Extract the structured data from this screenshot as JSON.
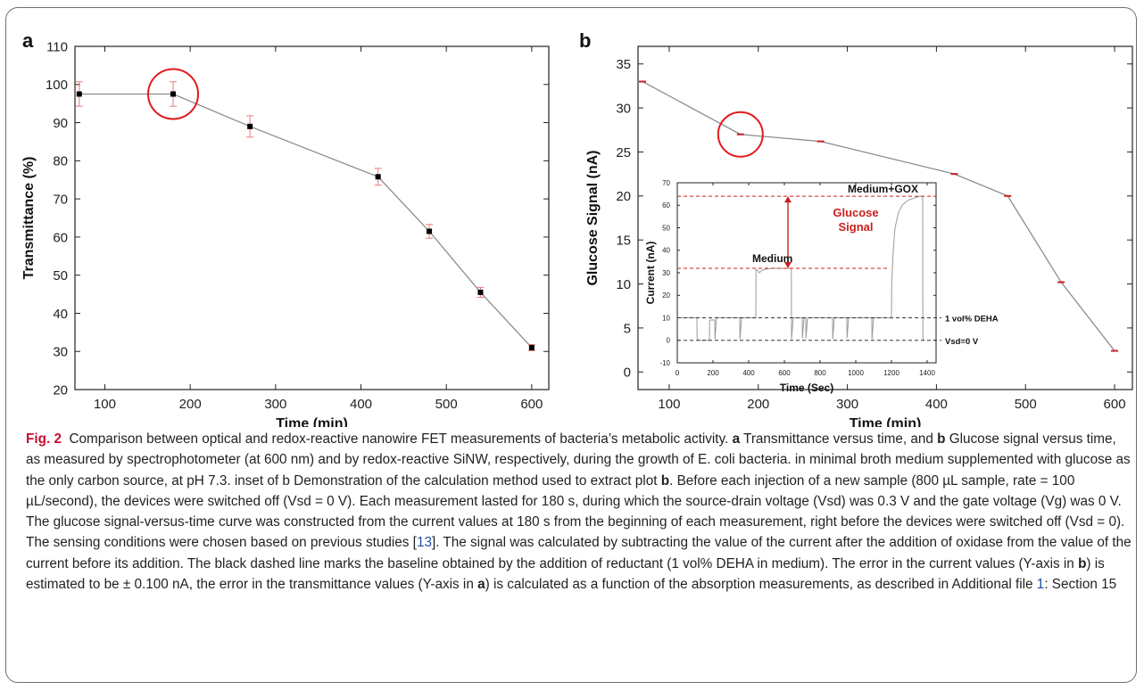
{
  "chart_data": [
    {
      "panel": "a",
      "type": "line",
      "xlabel": "Time (min)",
      "ylabel": "Transmittance (%)",
      "xlim": [
        65,
        620
      ],
      "ylim": [
        20,
        110
      ],
      "xticks": [
        100,
        200,
        300,
        400,
        500,
        600
      ],
      "yticks": [
        20,
        30,
        40,
        50,
        60,
        70,
        80,
        90,
        100,
        110
      ],
      "series": [
        {
          "x": [
            70,
            180,
            270,
            420,
            480,
            540,
            600
          ],
          "y": [
            97.5,
            97.5,
            89,
            75.8,
            61.5,
            45.5,
            31
          ],
          "err": [
            3.2,
            3.2,
            2.8,
            2.2,
            1.8,
            1.3,
            0.8
          ]
        }
      ],
      "highlight": {
        "x": 180,
        "y": 97.5
      },
      "colors": {
        "line": "#8c8c8c",
        "marker": "#000000",
        "error": "#e87a7a",
        "highlight": "#e31a1c"
      }
    },
    {
      "panel": "b",
      "type": "line",
      "xlabel": "Time (min)",
      "ylabel": "Glucose Signal (nA)",
      "xlim": [
        65,
        620
      ],
      "ylim": [
        -2,
        37
      ],
      "xticks": [
        100,
        200,
        300,
        400,
        500,
        600
      ],
      "yticks": [
        0,
        5,
        10,
        15,
        20,
        25,
        30,
        35
      ],
      "series": [
        {
          "x": [
            70,
            180,
            270,
            420,
            480,
            540,
            600
          ],
          "y": [
            33,
            27,
            26.2,
            22.5,
            20,
            10.2,
            2.4
          ],
          "err": [
            0.1,
            0.1,
            0.1,
            0.1,
            0.1,
            0.1,
            0.1
          ]
        }
      ],
      "highlight": {
        "x": 180,
        "y": 27
      },
      "colors": {
        "line": "#8c8c8c",
        "marker": "#cc2020",
        "highlight": "#e31a1c"
      }
    },
    {
      "panel": "b-inset",
      "type": "line",
      "xlabel": "Time (Sec)",
      "ylabel": "Current (nA)",
      "xlim": [
        0,
        1450
      ],
      "ylim": [
        -10,
        70
      ],
      "xticks": [
        0,
        200,
        400,
        600,
        800,
        1000,
        1200,
        1400
      ],
      "yticks": [
        -10,
        0,
        10,
        20,
        30,
        40,
        50,
        60,
        70
      ],
      "trace": {
        "t": [
          0,
          110,
          111,
          120,
          180,
          181,
          210,
          211,
          220,
          350,
          351,
          360,
          440,
          441,
          450,
          460,
          470,
          480,
          490,
          500,
          510,
          520,
          530,
          540,
          550,
          560,
          570,
          580,
          590,
          600,
          610,
          620,
          630,
          639,
          640,
          650,
          700,
          701,
          710,
          720,
          721,
          730,
          870,
          871,
          880,
          950,
          951,
          960,
          1090,
          1091,
          1100,
          1200,
          1201,
          1210,
          1220,
          1240,
          1260,
          1280,
          1300,
          1320,
          1340,
          1360,
          1375,
          1376,
          1380,
          1385
        ],
        "i": [
          10,
          10,
          1,
          0,
          0,
          9,
          9,
          0.5,
          10,
          10,
          0.5,
          10,
          10,
          31.5,
          31,
          30,
          30.8,
          31.2,
          31.5,
          31.7,
          31.8,
          31.9,
          32,
          32,
          32,
          32,
          32,
          32,
          32,
          32,
          32,
          32,
          32,
          32,
          0.5,
          10,
          10,
          1,
          10,
          10,
          1,
          10,
          10,
          0.5,
          10,
          10,
          1,
          10,
          10,
          0.5,
          10,
          10,
          25,
          40,
          50,
          57,
          60,
          61.5,
          62.5,
          63,
          63.5,
          64,
          64,
          1,
          0,
          0
        ]
      },
      "lines": {
        "medium": 32,
        "medium_gox": 64,
        "deha": 10,
        "vsd0": 0
      },
      "labels": {
        "medium": "Medium",
        "medium_gox": "Medium+GOX",
        "glucose": "Glucose\nSignal",
        "deha": "1 vol% DEHA",
        "vsd": "Vsd=0 V"
      }
    }
  ],
  "panel_labels": {
    "a": "a",
    "b": "b"
  },
  "caption": {
    "label": "Fig. 2",
    "intro": "Comparison between optical and redox-reactive nanowire FET measurements of bacteria’s metabolic activity. ",
    "p1": " Transmittance versus time, and ",
    "p2": " Glucose signal versus time, as measured by spectrophotometer (at 600 nm) and by redox-reactive SiNW, respectively, during the growth of E. coli bacteria. in minimal broth medium supplemented with glucose as the only carbon source, at pH 7.3. inset of b Demonstration of the calculation method used to extract plot ",
    "p3": ". Before each injection of a new sample (800 µL sample, rate = 100 µL/second), the devices were switched off (Vsd = 0 V). Each measurement lasted for 180 s, during which the source-drain voltage (Vsd) was 0.3 V and the gate voltage (Vg) was 0 V. The glucose signal-versus-time curve was constructed from the current values at 180 s from the beginning of each measurement, right before the devices were switched off (Vsd = 0). The sensing conditions were chosen based on previous studies [",
    "ref13": "13",
    "p4": "]. The signal was calculated by subtracting the value of the current after the addition of oxidase from the value of the current before its addition. The black dashed line marks the baseline obtained by the addition of reductant (1 vol% DEHA in medium). The error in the current values (Y-axis in ",
    "p5": ") is estimated to be ± 0.100 nA, the error in the transmittance values (Y-axis in ",
    "p6": ") is calculated as a function of the absorption measurements, as described in Additional file ",
    "ref1": "1",
    "p7": ": Section 15",
    "bold_a": "a",
    "bold_b": "b"
  }
}
